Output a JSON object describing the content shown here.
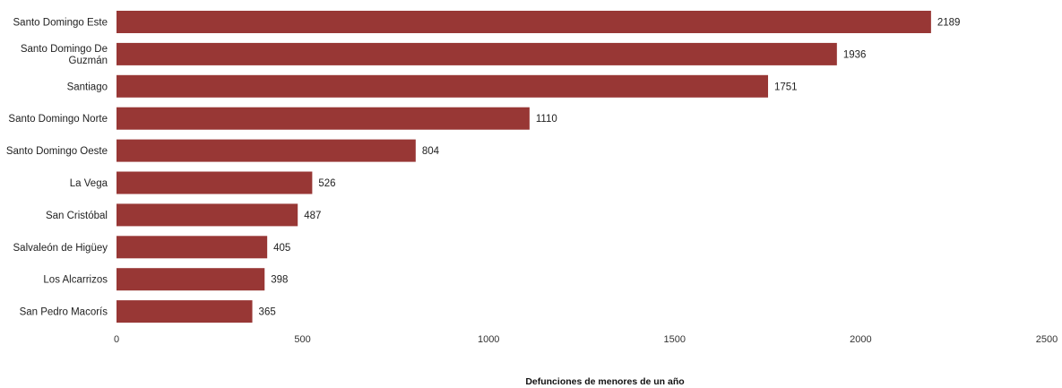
{
  "chart_data": {
    "type": "bar",
    "orientation": "horizontal",
    "categories": [
      "Santo Domingo Este",
      "Santo Domingo De Guzmán",
      "Santiago",
      "Santo Domingo Norte",
      "Santo Domingo Oeste",
      "La Vega",
      "San Cristóbal",
      "Salvaleón de Higüey",
      "Los Alcarrizos",
      "San Pedro Macorís"
    ],
    "category_label_lines": [
      [
        "Santo Domingo Este"
      ],
      [
        "Santo Domingo De",
        "Guzmán"
      ],
      [
        "Santiago"
      ],
      [
        "Santo Domingo Norte"
      ],
      [
        "Santo Domingo Oeste"
      ],
      [
        "La Vega"
      ],
      [
        "San Cristóbal"
      ],
      [
        "Salvaleón de Higüey"
      ],
      [
        "Los Alcarrizos"
      ],
      [
        "San Pedro Macorís"
      ]
    ],
    "values": [
      2189,
      1936,
      1751,
      1110,
      804,
      526,
      487,
      405,
      398,
      365
    ],
    "value_labels": [
      "2189",
      "1936",
      "1751",
      "1110",
      "804",
      "526",
      "487",
      "405",
      "398",
      "365"
    ],
    "xlim": [
      0,
      2500
    ],
    "x_ticks": [
      0,
      500,
      1000,
      1500,
      2000,
      2500
    ],
    "x_tick_labels": [
      "0",
      "500",
      "1000",
      "1500",
      "2000",
      "2500"
    ],
    "xlabel": "Defunciones de menores de un año",
    "ylabel": "",
    "title": "",
    "grid": false,
    "bar_color": "#983735"
  }
}
